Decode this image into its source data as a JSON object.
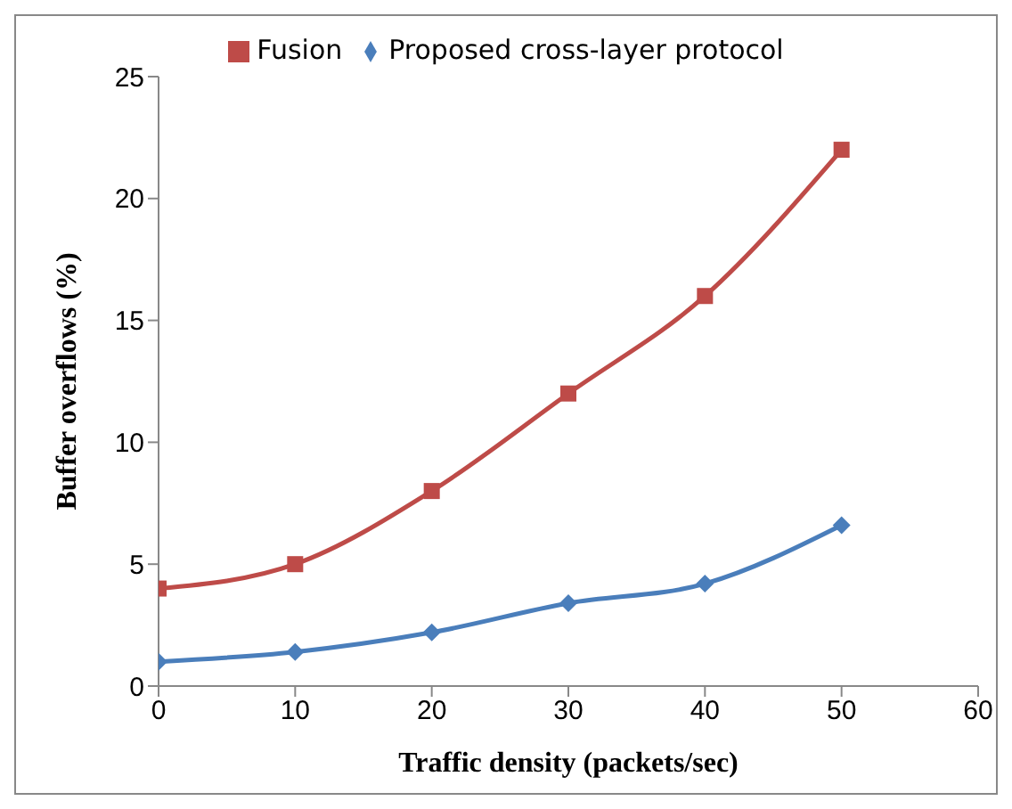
{
  "chart_data": {
    "type": "line",
    "xlabel": "Traffic density (packets/sec)",
    "ylabel": "Buffer overflows (%)",
    "x": [
      0,
      10,
      20,
      30,
      40,
      50
    ],
    "series": [
      {
        "name": "Proposed cross-layer protocol",
        "color": "#4a7ebb",
        "marker": "diamond",
        "values": [
          1,
          1.4,
          2.2,
          3.4,
          4.2,
          6.6
        ]
      },
      {
        "name": "Fusion",
        "color": "#be4b48",
        "marker": "square",
        "values": [
          4,
          5,
          8,
          12,
          16,
          22
        ]
      }
    ],
    "xlim": [
      0,
      60
    ],
    "xticks": [
      0,
      10,
      20,
      30,
      40,
      50,
      60
    ],
    "ylim": [
      0,
      25
    ],
    "yticks": [
      0,
      5,
      10,
      15,
      20,
      25
    ],
    "grid": false,
    "legend": "top"
  }
}
